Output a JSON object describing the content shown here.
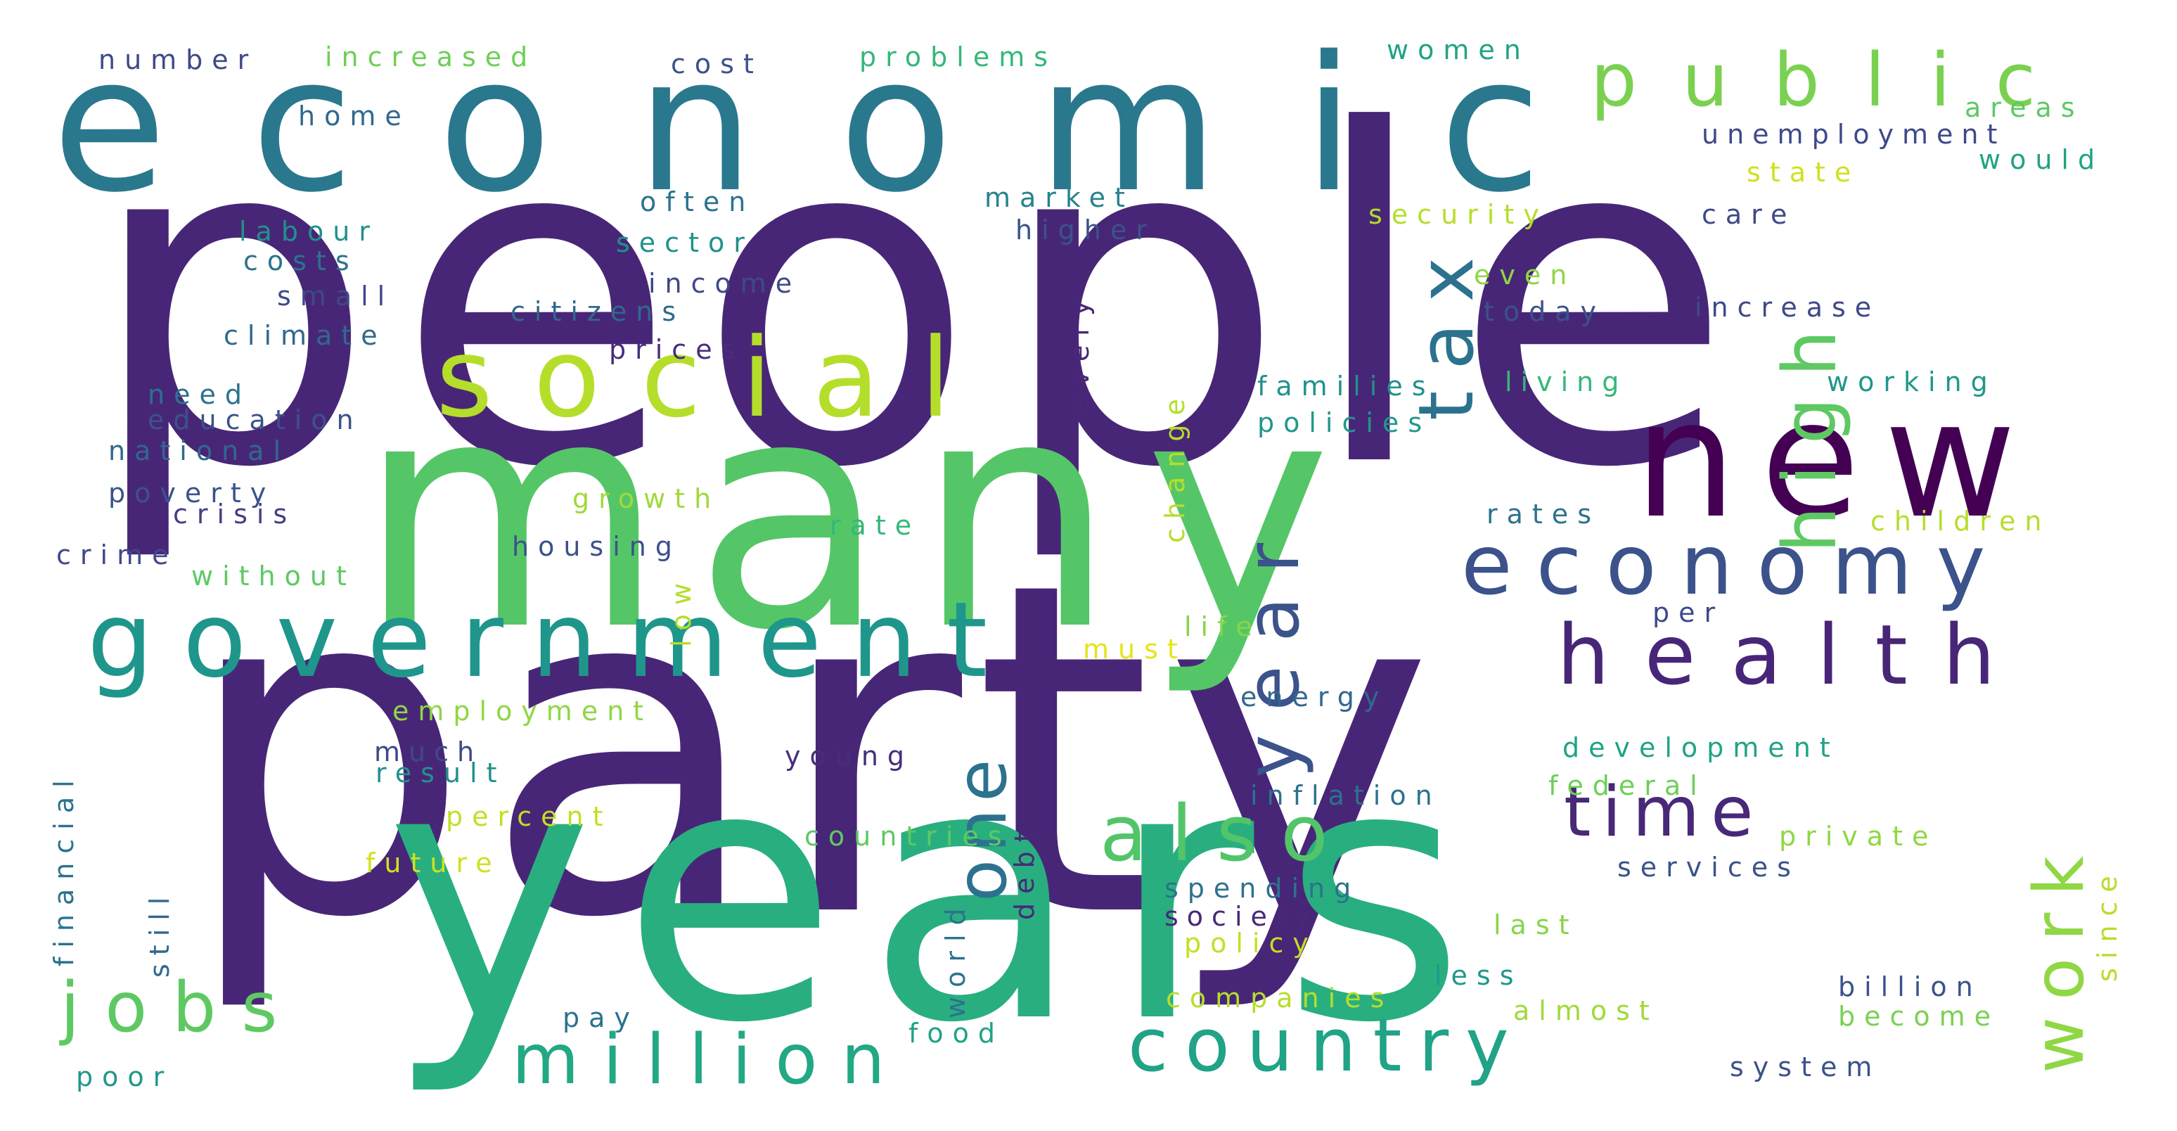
{
  "palette": {
    "deep-purple": "#440154",
    "indigo": "#482677",
    "slate-blue": "#404788",
    "steel-blue": "#33638d",
    "teal": "#287d8e",
    "sea-green": "#1f968b",
    "jade": "#29af7f",
    "green": "#55c667",
    "lime": "#95d840",
    "yellow": "#dce319"
  },
  "words": [
    {
      "text": "people",
      "color": "#482677"
    },
    {
      "text": "party",
      "color": "#482677"
    },
    {
      "text": "many",
      "color": "#55c667"
    },
    {
      "text": "years",
      "color": "#29af7f"
    },
    {
      "text": "economic",
      "color": "#2a788e"
    },
    {
      "text": "social",
      "color": "#b5de2b"
    },
    {
      "text": "government",
      "color": "#1f968b"
    },
    {
      "text": "new",
      "color": "#440154"
    },
    {
      "text": "public",
      "color": "#7ad151"
    },
    {
      "text": "economy",
      "color": "#3b528b"
    },
    {
      "text": "health",
      "color": "#482677"
    },
    {
      "text": "country",
      "color": "#20a386"
    },
    {
      "text": "million",
      "color": "#22a884"
    },
    {
      "text": "also",
      "color": "#52c569"
    },
    {
      "text": "time",
      "color": "#5ec962"
    },
    {
      "text": "jobs",
      "color": "#2c728e"
    },
    {
      "text": "high",
      "color": "#3b528b"
    },
    {
      "text": "tax",
      "color": "#2c728e"
    },
    {
      "text": "year",
      "color": "#8fd744"
    },
    {
      "text": "one",
      "color": "#482878"
    },
    {
      "text": "work",
      "color": "#5ec962"
    },
    {
      "text": "number",
      "color": "#3e4989"
    },
    {
      "text": "increased",
      "color": "#6ece58"
    },
    {
      "text": "cost",
      "color": "#3b528b"
    },
    {
      "text": "problems",
      "color": "#35b779"
    },
    {
      "text": "women",
      "color": "#20a386"
    },
    {
      "text": "home",
      "color": "#31688e"
    },
    {
      "text": "areas",
      "color": "#5ec962"
    },
    {
      "text": "unemployment",
      "color": "#3e4989"
    },
    {
      "text": "would",
      "color": "#20a386"
    },
    {
      "text": "state",
      "color": "#d0e11c"
    },
    {
      "text": "often",
      "color": "#2c728e"
    },
    {
      "text": "market",
      "color": "#26828e"
    },
    {
      "text": "labour",
      "color": "#21918c"
    },
    {
      "text": "higher",
      "color": "#3b528b"
    },
    {
      "text": "security",
      "color": "#b5de2b"
    },
    {
      "text": "care",
      "color": "#3e4989"
    },
    {
      "text": "costs",
      "color": "#2c728e"
    },
    {
      "text": "sector",
      "color": "#21918c"
    },
    {
      "text": "even",
      "color": "#8fd744"
    },
    {
      "text": "income",
      "color": "#3e4989"
    },
    {
      "text": "small",
      "color": "#3e4989"
    },
    {
      "text": "citizens",
      "color": "#31688e"
    },
    {
      "text": "today",
      "color": "#3b528b"
    },
    {
      "text": "increase",
      "color": "#3e4989"
    },
    {
      "text": "climate",
      "color": "#31688e"
    },
    {
      "text": "prices",
      "color": "#472d7b"
    },
    {
      "text": "need",
      "color": "#482878"
    },
    {
      "text": "families",
      "color": "#2c728e"
    },
    {
      "text": "living",
      "color": "#b5de2b"
    },
    {
      "text": "working",
      "color": "#21918c"
    },
    {
      "text": "education",
      "color": "#35b779"
    },
    {
      "text": "policies",
      "color": "#1f988b"
    },
    {
      "text": "national",
      "color": "#3b528b"
    },
    {
      "text": "poverty",
      "color": "#1f988b"
    },
    {
      "text": "growth",
      "color": "#31688e"
    },
    {
      "text": "crisis",
      "color": "#3b528b"
    },
    {
      "text": "rates",
      "color": "#a0da39"
    },
    {
      "text": "rate",
      "color": "#433e85"
    },
    {
      "text": "children",
      "color": "#2c728e"
    },
    {
      "text": "crime",
      "color": "#35b779"
    },
    {
      "text": "housing",
      "color": "#b5de2b"
    },
    {
      "text": "without",
      "color": "#3e4989"
    },
    {
      "text": "per",
      "color": "#3b528b"
    },
    {
      "text": "life",
      "color": "#b5de2b"
    },
    {
      "text": "must",
      "color": "#5ec962"
    },
    {
      "text": "energy",
      "color": "#3e4989"
    },
    {
      "text": "employment",
      "color": "#2c728e"
    },
    {
      "text": "development",
      "color": "#31688e"
    },
    {
      "text": "much",
      "color": "#86d549"
    },
    {
      "text": "result",
      "color": "#e5e419"
    },
    {
      "text": "young",
      "color": "#31688e"
    },
    {
      "text": "federal",
      "color": "#8fd744"
    },
    {
      "text": "inflation",
      "color": "#20a386"
    },
    {
      "text": "percent",
      "color": "#482878"
    },
    {
      "text": "countries",
      "color": "#3e4989"
    },
    {
      "text": "private",
      "color": "#21918c"
    },
    {
      "text": "future",
      "color": "#472d7b"
    },
    {
      "text": "services",
      "color": "#6ece58"
    },
    {
      "text": "spending",
      "color": "#b5de2b"
    },
    {
      "text": "society",
      "color": "#2c728e"
    },
    {
      "text": "last",
      "color": "#c2df23"
    },
    {
      "text": "policy",
      "color": "#5ec962"
    },
    {
      "text": "less",
      "color": "#8fd744"
    },
    {
      "text": "billion",
      "color": "#d0e11c"
    },
    {
      "text": "companies",
      "color": "#3b528b"
    },
    {
      "text": "almost",
      "color": "#2c728e"
    },
    {
      "text": "become",
      "color": "#482878"
    },
    {
      "text": "pay",
      "color": "#2c728e"
    },
    {
      "text": "food",
      "color": "#86d549"
    },
    {
      "text": "poor",
      "color": "#c2df23"
    },
    {
      "text": "system",
      "color": "#1f988b"
    },
    {
      "text": "every",
      "color": "#3b528b"
    },
    {
      "text": "change",
      "color": "#b5de2b"
    },
    {
      "text": "low",
      "color": "#a0da39"
    },
    {
      "text": "financial",
      "color": "#7ad151"
    },
    {
      "text": "still",
      "color": "#2c728e"
    },
    {
      "text": "debt",
      "color": "#20a386"
    },
    {
      "text": "since",
      "color": "#1f988b"
    },
    {
      "text": "world",
      "color": "#3b528b"
    }
  ]
}
